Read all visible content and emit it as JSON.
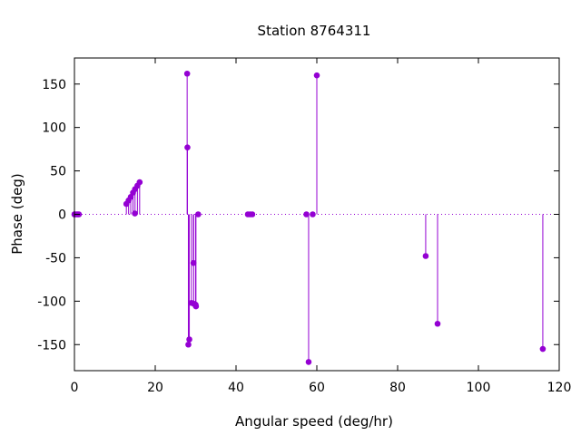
{
  "chart_data": {
    "type": "scatter",
    "style": "impulses-with-points",
    "title": "Station 8764311",
    "xlabel": "Angular speed (deg/hr)",
    "ylabel": "Phase (deg)",
    "xlim": [
      0,
      120
    ],
    "ylim": [
      -180,
      180
    ],
    "x_ticks": [
      0,
      20,
      40,
      60,
      80,
      100,
      120
    ],
    "y_ticks": [
      -150,
      -100,
      -50,
      0,
      50,
      100,
      150
    ],
    "grid": false,
    "zero_line": true,
    "color": "#9400d3",
    "points": [
      {
        "x": 0.0,
        "y": 0
      },
      {
        "x": 0.04,
        "y": 0
      },
      {
        "x": 0.08,
        "y": 0
      },
      {
        "x": 0.54,
        "y": 0
      },
      {
        "x": 0.82,
        "y": 0
      },
      {
        "x": 1.1,
        "y": 0
      },
      {
        "x": 12.85,
        "y": 12
      },
      {
        "x": 13.4,
        "y": 16
      },
      {
        "x": 13.94,
        "y": 20
      },
      {
        "x": 14.5,
        "y": 25
      },
      {
        "x": 14.96,
        "y": 1
      },
      {
        "x": 15.0,
        "y": 29
      },
      {
        "x": 15.59,
        "y": 33
      },
      {
        "x": 16.14,
        "y": 37
      },
      {
        "x": 27.9,
        "y": 162
      },
      {
        "x": 27.97,
        "y": 77
      },
      {
        "x": 28.2,
        "y": -150
      },
      {
        "x": 28.44,
        "y": -144
      },
      {
        "x": 28.98,
        "y": -102
      },
      {
        "x": 29.46,
        "y": -56
      },
      {
        "x": 29.53,
        "y": -103
      },
      {
        "x": 30.0,
        "y": -104
      },
      {
        "x": 30.08,
        "y": -106
      },
      {
        "x": 30.63,
        "y": 0
      },
      {
        "x": 42.93,
        "y": 0
      },
      {
        "x": 43.48,
        "y": 0
      },
      {
        "x": 44.03,
        "y": 0
      },
      {
        "x": 57.42,
        "y": 0
      },
      {
        "x": 57.97,
        "y": -170
      },
      {
        "x": 58.98,
        "y": 0
      },
      {
        "x": 60.0,
        "y": 160
      },
      {
        "x": 86.95,
        "y": -48
      },
      {
        "x": 89.89,
        "y": -126
      },
      {
        "x": 115.94,
        "y": -155
      }
    ]
  }
}
